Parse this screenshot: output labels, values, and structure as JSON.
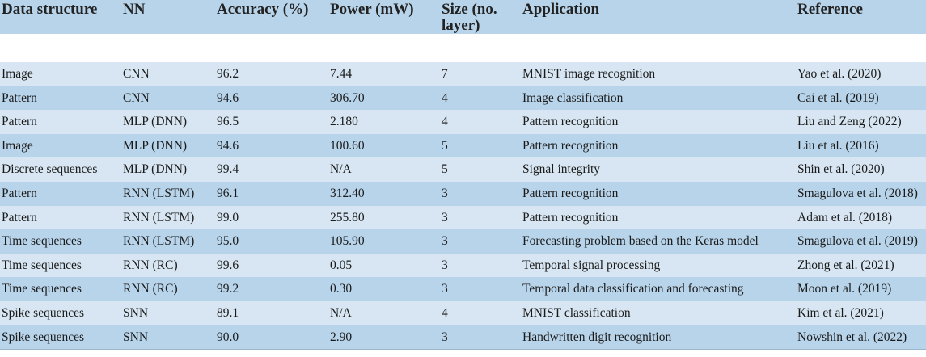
{
  "table": {
    "headers": [
      "Data structure",
      "NN",
      "Accuracy (%)",
      "Power (mW)",
      "Size (no.\nlayer)",
      "Application",
      "Reference"
    ],
    "rows": [
      [
        "Image",
        "CNN",
        "96.2",
        "7.44",
        "7",
        "MNIST image recognition",
        "Yao et al. (2020)"
      ],
      [
        "Pattern",
        "CNN",
        "94.6",
        "306.70",
        "4",
        "Image classification",
        "Cai et al. (2019)"
      ],
      [
        "Pattern",
        "MLP (DNN)",
        "96.5",
        "2.180",
        "4",
        "Pattern recognition",
        "Liu and Zeng (2022)"
      ],
      [
        "Image",
        "MLP (DNN)",
        "94.6",
        "100.60",
        "5",
        "Pattern recognition",
        "Liu et al. (2016)"
      ],
      [
        "Discrete sequences",
        "MLP (DNN)",
        "99.4",
        "N/A",
        "5",
        "Signal integrity",
        "Shin et al. (2020)"
      ],
      [
        "Pattern",
        "RNN (LSTM)",
        "96.1",
        "312.40",
        "3",
        "Pattern recognition",
        "Smagulova et al. (2018)"
      ],
      [
        "Pattern",
        "RNN (LSTM)",
        "99.0",
        "255.80",
        "3",
        "Pattern recognition",
        "Adam et al. (2018)"
      ],
      [
        "Time sequences",
        "RNN (LSTM)",
        "95.0",
        "105.90",
        "3",
        "Forecasting problem based on the Keras model",
        "Smagulova et al. (2019)"
      ],
      [
        "Time sequences",
        "RNN (RC)",
        "99.6",
        "0.05",
        "3",
        "Temporal signal processing",
        "Zhong et al. (2021)"
      ],
      [
        "Time sequences",
        "RNN (RC)",
        "99.2",
        "0.30",
        "3",
        "Temporal data classification and forecasting",
        "Moon et al. (2019)"
      ],
      [
        "Spike sequences",
        "SNN",
        "89.1",
        "N/A",
        "4",
        "MNIST classification",
        "Kim et al. (2021)"
      ],
      [
        "Spike sequences",
        "SNN",
        "90.0",
        "2.90",
        "3",
        "Handwritten digit recognition",
        "Nowshin et al. (2022)"
      ]
    ]
  },
  "colors": {
    "header_bg": "#b8d4ea",
    "row_light": "#d7e6f2",
    "row_dark": "#b8d4ea"
  }
}
